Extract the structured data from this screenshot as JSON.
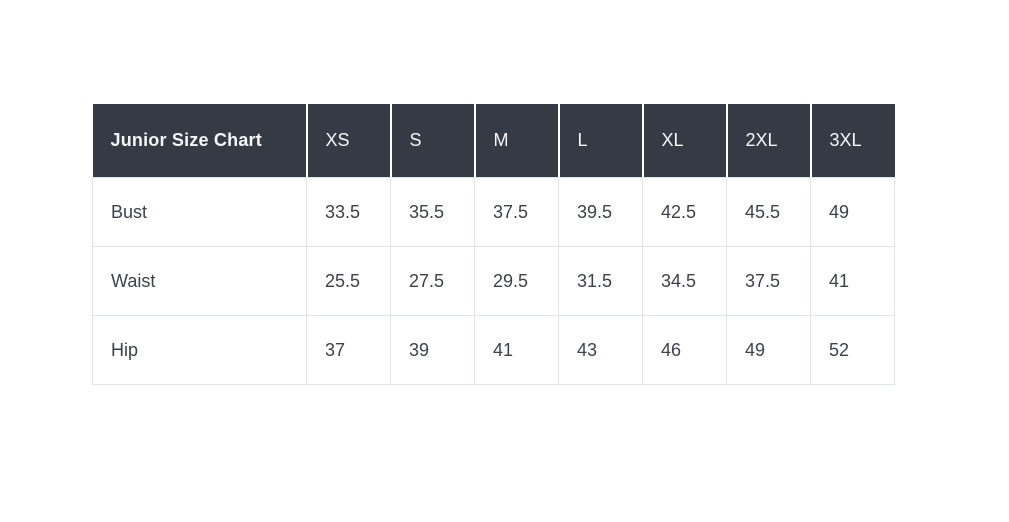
{
  "page": {
    "background_color": "#ffffff"
  },
  "table": {
    "header_bg_color": "#353b45",
    "header_text_color": "#f5f6f7",
    "body_text_color": "#3c424b",
    "border_color": "#e1e5e9",
    "title_cell": "Junior Size Chart",
    "size_columns": [
      "XS",
      "S",
      "M",
      "L",
      "XL",
      "2XL",
      "3XL"
    ],
    "rows": [
      {
        "label": "Bust",
        "values": [
          "33.5",
          "35.5",
          "37.5",
          "39.5",
          "42.5",
          "45.5",
          "49"
        ]
      },
      {
        "label": "Waist",
        "values": [
          "25.5",
          "27.5",
          "29.5",
          "31.5",
          "34.5",
          "37.5",
          "41"
        ]
      },
      {
        "label": "Hip",
        "values": [
          "37",
          "39",
          "41",
          "43",
          "46",
          "49",
          "52"
        ]
      }
    ]
  },
  "chart_data": {
    "type": "table",
    "title": "Junior Size Chart",
    "columns": [
      "Junior Size Chart",
      "XS",
      "S",
      "M",
      "L",
      "XL",
      "2XL",
      "3XL"
    ],
    "rows": [
      [
        "Bust",
        33.5,
        35.5,
        37.5,
        39.5,
        42.5,
        45.5,
        49
      ],
      [
        "Waist",
        25.5,
        27.5,
        29.5,
        31.5,
        34.5,
        37.5,
        41
      ],
      [
        "Hip",
        37,
        39,
        41,
        43,
        46,
        49,
        52
      ]
    ],
    "layout_hints": {
      "header_style": "dark charcoal background, white text, white 2px separators between header cells",
      "body_style": "white background, 1px light gray grid borders, left-aligned cells",
      "position": "table offset from top-left of white canvas"
    }
  }
}
